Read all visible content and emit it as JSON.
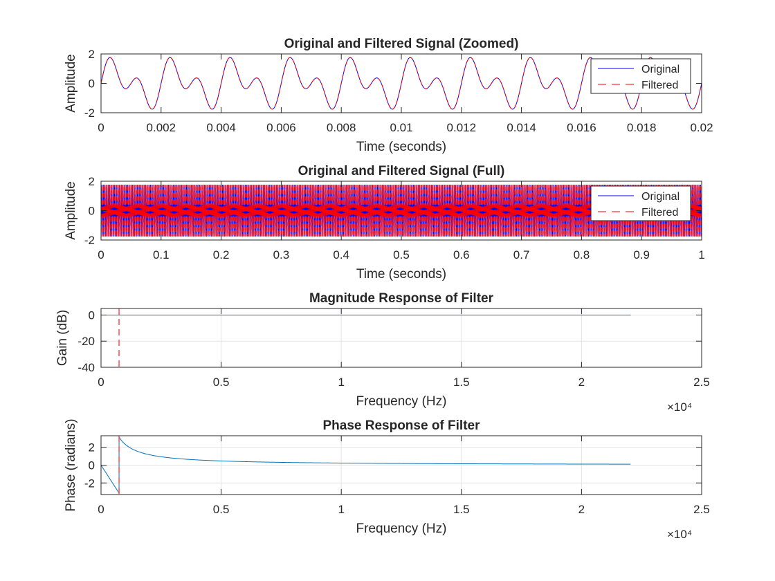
{
  "chart_data": [
    {
      "type": "line",
      "title": "Original and Filtered Signal (Zoomed)",
      "xlabel": "Time (seconds)",
      "ylabel": "Amplitude",
      "xlim": [
        0,
        0.02
      ],
      "ylim": [
        -2,
        2
      ],
      "xticks": [
        "0",
        "0.002",
        "0.004",
        "0.006",
        "0.008",
        "0.01",
        "0.012",
        "0.014",
        "0.016",
        "0.018",
        "0.02"
      ],
      "yticks": [
        "-2",
        "0",
        "2"
      ],
      "grid": false,
      "legend": {
        "placement": "top-right",
        "entries": [
          "Original",
          "Filtered"
        ]
      },
      "series": [
        {
          "name": "Original",
          "color": "#0000ff",
          "style": "solid",
          "function": "sin(2*pi*500*t) + sin(2*pi*1000*t)"
        },
        {
          "name": "Filtered",
          "color": "#ff0000",
          "style": "dashed",
          "function": "sin(2*pi*500*t) + sin(2*pi*1000*t)"
        }
      ]
    },
    {
      "type": "line",
      "title": "Original and Filtered Signal (Full)",
      "xlabel": "Time (seconds)",
      "ylabel": "Amplitude",
      "xlim": [
        0,
        1
      ],
      "ylim": [
        -2,
        2
      ],
      "xticks": [
        "0",
        "0.1",
        "0.2",
        "0.3",
        "0.4",
        "0.5",
        "0.6",
        "0.7",
        "0.8",
        "0.9",
        "1"
      ],
      "yticks": [
        "-2",
        "0",
        "2"
      ],
      "grid": false,
      "legend": {
        "placement": "top-right",
        "entries": [
          "Original",
          "Filtered"
        ]
      },
      "series": [
        {
          "name": "Original",
          "color": "#0000ff",
          "style": "solid",
          "function": "sin(2*pi*500*t) + sin(2*pi*1000*t)"
        },
        {
          "name": "Filtered",
          "color": "#ff0000",
          "style": "dashed",
          "function": "sin(2*pi*500*t) + sin(2*pi*1000*t)"
        }
      ]
    },
    {
      "type": "line",
      "title": "Magnitude Response of Filter",
      "xlabel": "Frequency (Hz)",
      "ylabel": "Gain (dB)",
      "xlim": [
        0,
        25000
      ],
      "ylim": [
        -40,
        5
      ],
      "xticks": [
        "0",
        "0.5",
        "1",
        "1.5",
        "2",
        "2.5"
      ],
      "yticks": [
        "0",
        "-20",
        "-40"
      ],
      "x_exponent": "×10⁴",
      "grid": true,
      "series": [
        {
          "color": "#0072bd",
          "x": [
            0,
            22050
          ],
          "y": [
            0,
            0
          ]
        }
      ],
      "vline": {
        "x": 750,
        "color": "#ff4d4d",
        "style": "dashed"
      }
    },
    {
      "type": "line",
      "title": "Phase Response of Filter",
      "xlabel": "Frequency (Hz)",
      "ylabel": "Phase (radians)",
      "xlim": [
        0,
        25000
      ],
      "ylim": [
        -3.3,
        3.3
      ],
      "xticks": [
        "0",
        "0.5",
        "1",
        "1.5",
        "2",
        "2.5"
      ],
      "yticks": [
        "2",
        "0",
        "-2"
      ],
      "x_exponent": "×10⁴",
      "grid": true,
      "series": [
        {
          "color": "#0072bd",
          "x": [
            0,
            750,
            750,
            1000,
            1500,
            2000,
            3000,
            4000,
            5000,
            7000,
            10000,
            15000,
            22050
          ],
          "y": [
            0,
            -3.14,
            3.14,
            2.35,
            1.57,
            1.18,
            0.785,
            0.59,
            0.47,
            0.34,
            0.235,
            0.157,
            0.107
          ]
        }
      ],
      "vline": {
        "x": 750,
        "color": "#ff4d4d",
        "style": "dashed"
      }
    }
  ]
}
